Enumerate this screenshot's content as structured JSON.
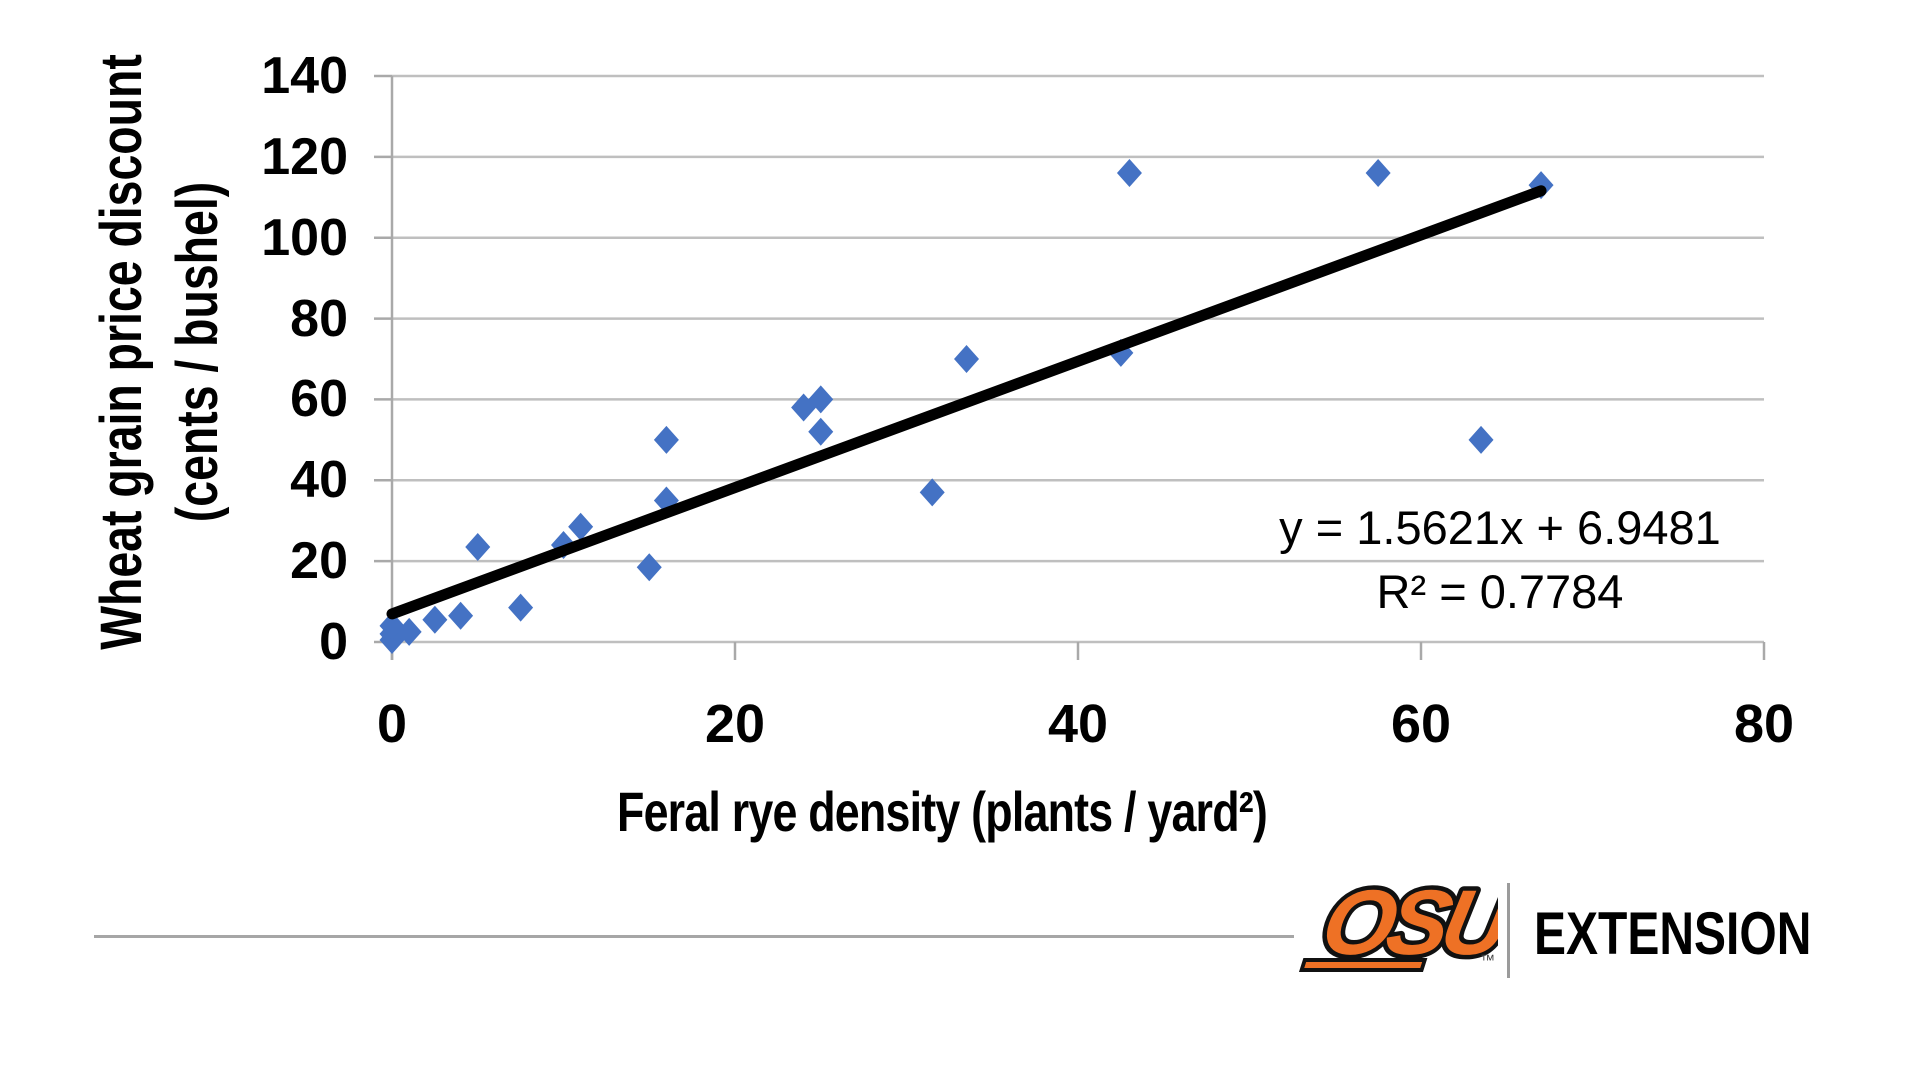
{
  "chart_data": {
    "type": "scatter",
    "title": "",
    "xlabel": "Feral rye density (plants / yard²)",
    "ylabel_line1": "Wheat grain price discount",
    "ylabel_line2": "(cents / bushel)",
    "xlim": [
      0,
      80
    ],
    "ylim": [
      0,
      140
    ],
    "xticks": [
      0,
      20,
      40,
      60,
      80
    ],
    "yticks": [
      0,
      20,
      40,
      60,
      80,
      100,
      120,
      140
    ],
    "grid": "horizontal-only",
    "legend": "none",
    "marker": "diamond",
    "marker_color": "#4472C4",
    "gridline_color": "#BFBFBF",
    "axis_color": "#A9A9A9",
    "points": [
      {
        "x": 0,
        "y": 0.5
      },
      {
        "x": 0,
        "y": 2
      },
      {
        "x": 0,
        "y": 4
      },
      {
        "x": 1,
        "y": 2.5
      },
      {
        "x": 2.5,
        "y": 5.5
      },
      {
        "x": 4,
        "y": 6.5
      },
      {
        "x": 5,
        "y": 23.5
      },
      {
        "x": 7.5,
        "y": 8.5
      },
      {
        "x": 10,
        "y": 24
      },
      {
        "x": 11,
        "y": 28.5
      },
      {
        "x": 15,
        "y": 18.5
      },
      {
        "x": 16,
        "y": 35
      },
      {
        "x": 16,
        "y": 50
      },
      {
        "x": 24,
        "y": 58
      },
      {
        "x": 25,
        "y": 60
      },
      {
        "x": 25,
        "y": 52
      },
      {
        "x": 31.5,
        "y": 37
      },
      {
        "x": 33.5,
        "y": 70
      },
      {
        "x": 42.5,
        "y": 71.5
      },
      {
        "x": 43,
        "y": 116
      },
      {
        "x": 57.5,
        "y": 116
      },
      {
        "x": 63.5,
        "y": 50
      },
      {
        "x": 67,
        "y": 113
      }
    ],
    "trendline": {
      "label": "y = 1.5621x + 6.9481",
      "r2_label": "R² = 0.7784",
      "slope": 1.5621,
      "intercept": 6.9481,
      "x_start": 0,
      "x_end": 67,
      "color": "#000000"
    }
  },
  "footer": {
    "osu_logo_text": "OSU",
    "trademark": "™",
    "extension_label": "EXTENSION",
    "osu_orange": "#EE7125",
    "logo_outline": "#111111"
  }
}
